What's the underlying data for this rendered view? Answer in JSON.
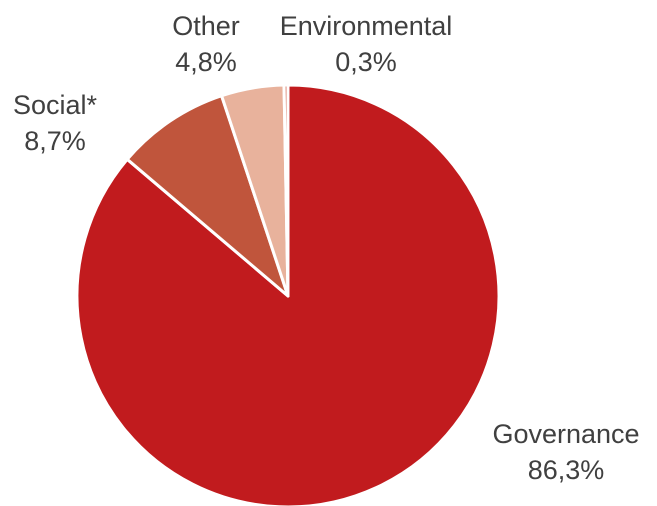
{
  "chart_data": {
    "type": "pie",
    "title": "",
    "start_angle_deg": 0,
    "direction": "clockwise",
    "slices": [
      {
        "label": "Governance",
        "value": 86.3,
        "value_label": "86,3%",
        "color": "#C11B1E"
      },
      {
        "label": "Social*",
        "value": 8.7,
        "value_label": "8,7%",
        "color": "#C0553C"
      },
      {
        "label": "Other",
        "value": 4.8,
        "value_label": "4,8%",
        "color": "#E8B29C"
      },
      {
        "label": "Environmental",
        "value": 0.3,
        "value_label": "0,3%",
        "color": "#D97F6B"
      }
    ]
  }
}
